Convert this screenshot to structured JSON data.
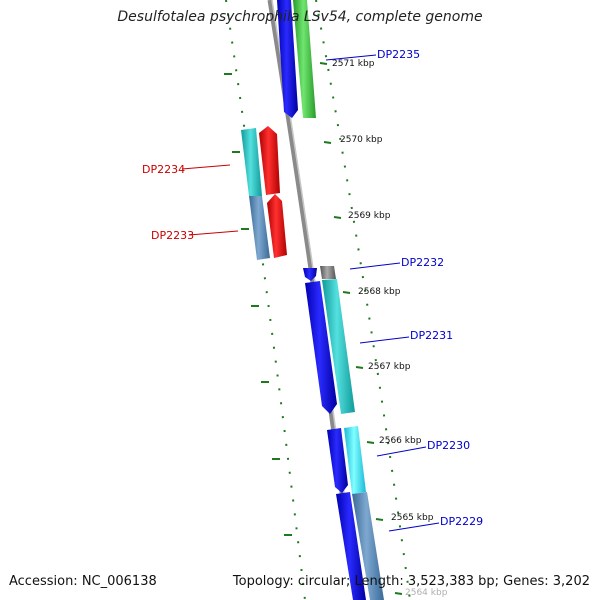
{
  "title": "Desulfotalea psychrophila LSv54, complete genome",
  "footer": {
    "accession": "Accession: NC_006138",
    "stats": "Topology: circular; Length: 3,523,383 bp; Genes: 3,202"
  },
  "colors": {
    "backbone": "#8a8a8a",
    "tick": "#1e7a1e",
    "reverse_label": "#cc0000",
    "forward_label": "#0000cc"
  },
  "ticks": [
    {
      "label": "2571 kbp",
      "kbp": 2571
    },
    {
      "label": "2570 kbp",
      "kbp": 2570
    },
    {
      "label": "2569 kbp",
      "kbp": 2569
    },
    {
      "label": "2568 kbp",
      "kbp": 2568
    },
    {
      "label": "2567 kbp",
      "kbp": 2567
    },
    {
      "label": "2566 kbp",
      "kbp": 2566
    },
    {
      "label": "2565 kbp",
      "kbp": 2565
    },
    {
      "label": "2564 kbp",
      "kbp": 2564
    }
  ],
  "genes": [
    {
      "name": "DP2235",
      "strand": "forward"
    },
    {
      "name": "DP2234",
      "strand": "reverse"
    },
    {
      "name": "DP2233",
      "strand": "reverse"
    },
    {
      "name": "DP2232",
      "strand": "forward"
    },
    {
      "name": "DP2231",
      "strand": "forward"
    },
    {
      "name": "DP2230",
      "strand": "forward"
    },
    {
      "name": "DP2229",
      "strand": "forward"
    }
  ]
}
